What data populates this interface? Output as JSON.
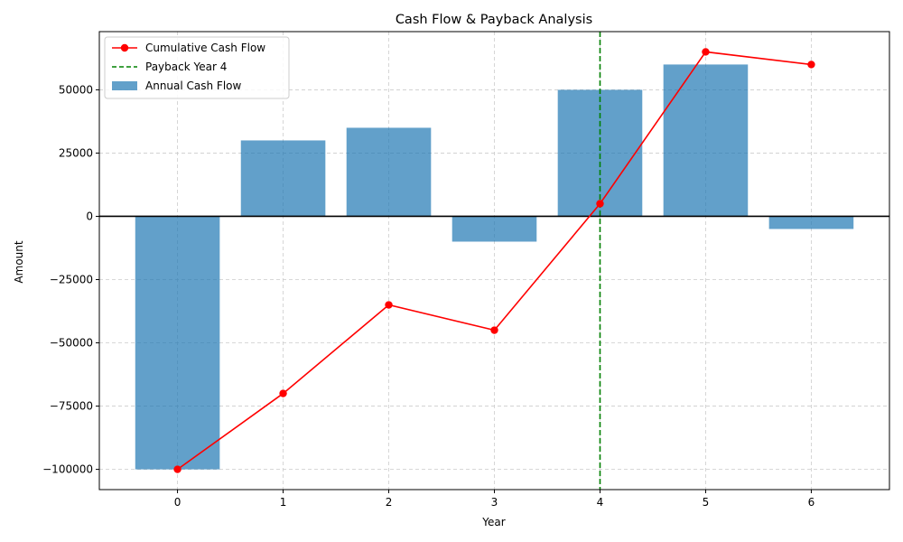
{
  "chart_data": {
    "type": "bar",
    "title": "Cash Flow & Payback Analysis",
    "xlabel": "Year",
    "ylabel": "Amount",
    "categories": [
      0,
      1,
      2,
      3,
      4,
      5,
      6
    ],
    "xlim": [
      -0.74,
      6.74
    ],
    "ylim": [
      -108000,
      73000
    ],
    "yticks": [
      -100000,
      -75000,
      -50000,
      -25000,
      0,
      25000,
      50000
    ],
    "ytick_labels": [
      "−100000",
      "−75000",
      "−50000",
      "−25000",
      "0",
      "25000",
      "50000"
    ],
    "xtick_labels": [
      "0",
      "1",
      "2",
      "3",
      "4",
      "5",
      "6"
    ],
    "grid": true,
    "legend_position": "top-left",
    "series": [
      {
        "name": "Annual Cash Flow",
        "type": "bar",
        "color": "#1f77b4",
        "values": [
          -100000,
          30000,
          35000,
          -10000,
          50000,
          60000,
          -5000
        ]
      },
      {
        "name": "Cumulative Cash Flow",
        "type": "line",
        "color": "#ff0000",
        "values": [
          -100000,
          -70000,
          -35000,
          -45000,
          5000,
          65000,
          60000
        ]
      }
    ],
    "annotations": [
      {
        "name": "Payback Year 4",
        "type": "vline",
        "x": 4,
        "color": "#008000",
        "style": "dashed"
      },
      {
        "type": "hline",
        "y": 0,
        "color": "#000000"
      }
    ]
  }
}
